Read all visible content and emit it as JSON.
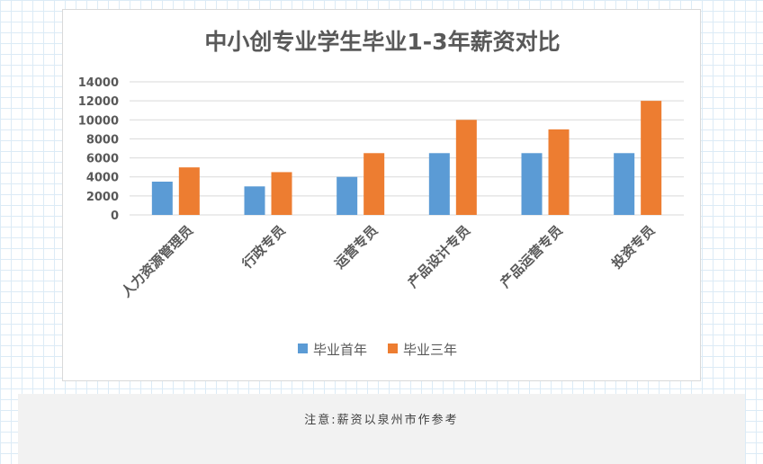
{
  "chart_data": {
    "type": "bar",
    "title": "中小创专业学生毕业1-3年薪资对比",
    "categories": [
      "人力资源管理员",
      "行政专员",
      "运营专员",
      "产品设计专员",
      "产品运营专员",
      "投资专员"
    ],
    "series": [
      {
        "name": "毕业首年",
        "color": "#5b9bd5",
        "values": [
          3500,
          3000,
          4000,
          6500,
          6500,
          6500
        ]
      },
      {
        "name": "毕业三年",
        "color": "#ed7d31",
        "values": [
          5000,
          4500,
          6500,
          10000,
          9000,
          12000
        ]
      }
    ],
    "ylim": [
      0,
      14000
    ],
    "yticks": [
      "0",
      "2000",
      "4000",
      "6000",
      "8000",
      "10000",
      "12000",
      "14000"
    ],
    "grid": true,
    "legend": "bottom"
  },
  "note": {
    "text": "注意:薪资以泉州市作参考"
  }
}
